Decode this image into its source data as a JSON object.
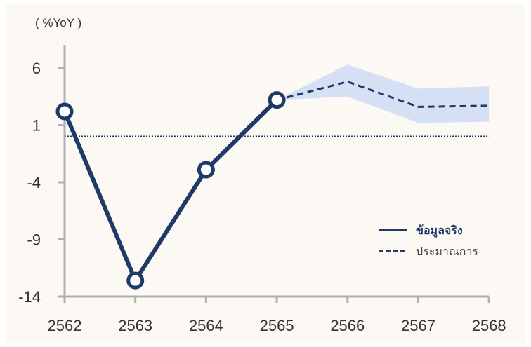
{
  "chart_data": {
    "type": "line",
    "ylabel": "( %YoY )",
    "categories": [
      "2562",
      "2563",
      "2564",
      "2565",
      "2566",
      "2567",
      "2568"
    ],
    "ylim": [
      -14,
      8
    ],
    "yticks": [
      "6",
      "1",
      "-4",
      "-9",
      "-14"
    ],
    "ytick_values": [
      6,
      1,
      -4,
      -9,
      -14
    ],
    "reference_line": 0,
    "series": [
      {
        "name": "ข้อมูลจริง",
        "style": "solid",
        "color": "#1f3a68",
        "markers": true,
        "x": [
          "2562",
          "2563",
          "2564",
          "2565"
        ],
        "values": [
          2.2,
          -12.6,
          -2.9,
          3.2
        ]
      },
      {
        "name": "ประมาณการ",
        "style": "dashed",
        "color": "#1f3a68",
        "markers": false,
        "x": [
          "2565",
          "2566",
          "2567",
          "2568"
        ],
        "values": [
          3.2,
          4.8,
          2.6,
          2.7
        ]
      }
    ],
    "forecast_band": {
      "color": "#d6e0f5",
      "x": [
        "2565",
        "2566",
        "2567",
        "2568"
      ],
      "upper": [
        3.2,
        6.3,
        4.2,
        4.4
      ],
      "lower": [
        3.2,
        3.5,
        1.2,
        1.3
      ]
    },
    "grid": false,
    "legend": "right"
  }
}
